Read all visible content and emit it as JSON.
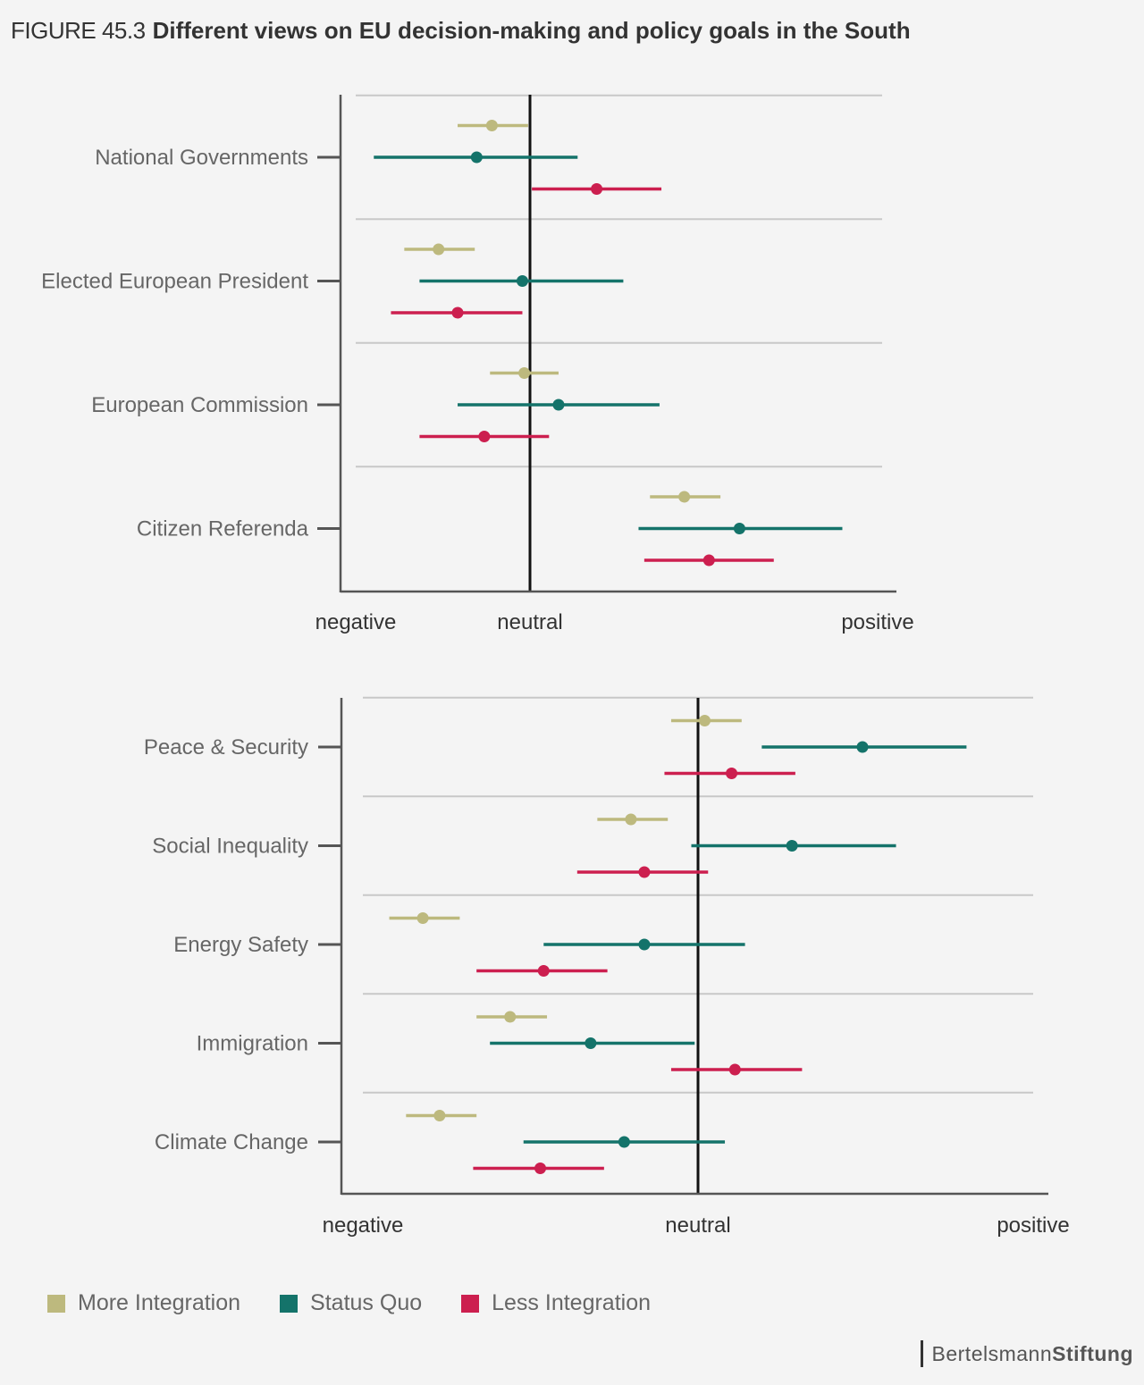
{
  "header": {
    "figure_label": "FIGURE 45.3",
    "title": "Different views on EU decision-making and policy goals in the South"
  },
  "colors": {
    "more_integration": "#bdb97e",
    "status_quo": "#14736a",
    "less_integration": "#cc1f4f",
    "axis": "#555555",
    "grid": "#c8c8c8",
    "neutral_line": "#111111"
  },
  "legend": [
    {
      "label": "More Integration",
      "color": "#bdb97e"
    },
    {
      "label": "Status Quo",
      "color": "#14736a"
    },
    {
      "label": "Less Integration",
      "color": "#cc1f4f"
    }
  ],
  "brand": {
    "part1": "Bertelsmann",
    "part2": "Stiftung"
  },
  "chart_data": [
    {
      "type": "scatter",
      "subtype": "point-range",
      "title": "",
      "xlabel": "",
      "ylabel": "",
      "x_tick_labels": [
        "negative",
        "neutral",
        "positive"
      ],
      "x_ticks": [
        -1.0,
        0,
        1.82
      ],
      "xlim": [
        -1.0,
        1.9
      ],
      "series_names": [
        "More Integration",
        "Status Quo",
        "Less Integration"
      ],
      "categories": [
        "National Governments",
        "Elected European President",
        "European Commission",
        "Citizen Referenda"
      ],
      "values": [
        [
          {
            "lo": -0.38,
            "mid": -0.2,
            "hi": -0.01
          },
          {
            "lo": -0.82,
            "mid": -0.28,
            "hi": 0.25
          },
          {
            "lo": 0.01,
            "mid": 0.35,
            "hi": 0.69
          }
        ],
        [
          {
            "lo": -0.66,
            "mid": -0.48,
            "hi": -0.29
          },
          {
            "lo": -0.58,
            "mid": -0.04,
            "hi": 0.49
          },
          {
            "lo": -0.73,
            "mid": -0.38,
            "hi": -0.04
          }
        ],
        [
          {
            "lo": -0.21,
            "mid": -0.03,
            "hi": 0.15
          },
          {
            "lo": -0.38,
            "mid": 0.15,
            "hi": 0.68
          },
          {
            "lo": -0.58,
            "mid": -0.24,
            "hi": 0.1
          }
        ],
        [
          {
            "lo": 0.63,
            "mid": 0.81,
            "hi": 1.0
          },
          {
            "lo": 0.57,
            "mid": 1.1,
            "hi": 1.64
          },
          {
            "lo": 0.6,
            "mid": 0.94,
            "hi": 1.28
          }
        ]
      ],
      "grid": true,
      "legend": "bottom"
    },
    {
      "type": "scatter",
      "subtype": "point-range",
      "title": "",
      "xlabel": "",
      "ylabel": "",
      "x_tick_labels": [
        "negative",
        "neutral",
        "positive"
      ],
      "x_ticks": [
        -1.0,
        0,
        1.0
      ],
      "xlim": [
        -1.07,
        1.05
      ],
      "series_names": [
        "More Integration",
        "Status Quo",
        "Less Integration"
      ],
      "categories": [
        "Peace & Security",
        "Social Inequality",
        "Energy Safety",
        "Immigration",
        "Climate Change"
      ],
      "values": [
        [
          {
            "lo": -0.08,
            "mid": 0.02,
            "hi": 0.13
          },
          {
            "lo": 0.19,
            "mid": 0.49,
            "hi": 0.8
          },
          {
            "lo": -0.1,
            "mid": 0.1,
            "hi": 0.29
          }
        ],
        [
          {
            "lo": -0.3,
            "mid": -0.2,
            "hi": -0.09
          },
          {
            "lo": -0.02,
            "mid": 0.28,
            "hi": 0.59
          },
          {
            "lo": -0.36,
            "mid": -0.16,
            "hi": 0.03
          }
        ],
        [
          {
            "lo": -0.92,
            "mid": -0.82,
            "hi": -0.71
          },
          {
            "lo": -0.46,
            "mid": -0.16,
            "hi": 0.14
          },
          {
            "lo": -0.66,
            "mid": -0.46,
            "hi": -0.27
          }
        ],
        [
          {
            "lo": -0.66,
            "mid": -0.56,
            "hi": -0.45
          },
          {
            "lo": -0.62,
            "mid": -0.32,
            "hi": -0.01
          },
          {
            "lo": -0.08,
            "mid": 0.11,
            "hi": 0.31
          }
        ],
        [
          {
            "lo": -0.87,
            "mid": -0.77,
            "hi": -0.66
          },
          {
            "lo": -0.52,
            "mid": -0.22,
            "hi": 0.08
          },
          {
            "lo": -0.67,
            "mid": -0.47,
            "hi": -0.28
          }
        ]
      ],
      "grid": true,
      "legend": "bottom"
    }
  ]
}
